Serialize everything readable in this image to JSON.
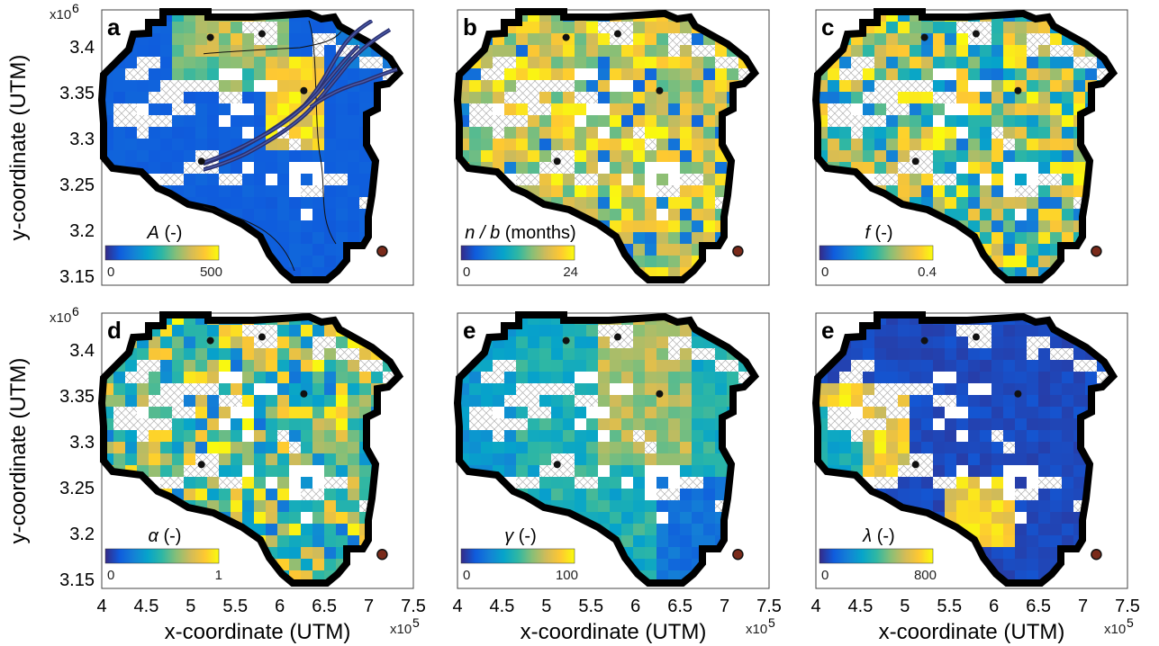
{
  "chart_data": {
    "type": "heatmap",
    "description_free": true,
    "xlabel": "x-coordinate (UTM)",
    "ylabel": "y-coordinate (UTM)",
    "x_scale_label": "x10",
    "x_scale_exp": "5",
    "y_scale_label": "x10",
    "y_scale_exp": "6",
    "xlim": [
      400000,
      750000
    ],
    "ylim": [
      3140000,
      3440000
    ],
    "x_ticks": [
      "4",
      "4.5",
      "5",
      "5.5",
      "6",
      "6.5",
      "7",
      "7.5"
    ],
    "y_ticks": [
      "3.4",
      "3.35",
      "3.3",
      "3.25",
      "3.2",
      "3.15"
    ],
    "x_tick_values": [
      400000,
      450000,
      500000,
      550000,
      600000,
      650000,
      700000,
      750000
    ],
    "y_tick_values": [
      3400000,
      3350000,
      3300000,
      3250000,
      3200000,
      3150000
    ],
    "colormap": [
      "#352a87",
      "#0f5cdd",
      "#1481d6",
      "#06a4ca",
      "#2eb7a4",
      "#87bf77",
      "#d1bb59",
      "#fec832",
      "#f9fb0e"
    ],
    "panels": [
      {
        "letter": "a",
        "var_label": "A (-)",
        "var_sym": "A",
        "var_rest": " (-)",
        "cmin": "0",
        "cmax": "500",
        "vmax": 500,
        "pattern": "A"
      },
      {
        "letter": "b",
        "var_label": "n / b (months)",
        "var_sym": "n / b",
        "var_rest": " (months)",
        "cmin": "0",
        "cmax": "24",
        "vmax": 24,
        "pattern": "noisyHigh"
      },
      {
        "letter": "c",
        "var_label": "f (-)",
        "var_sym": "f",
        "var_rest": " (-)",
        "cmin": "0",
        "cmax": "0.4",
        "vmax": 0.4,
        "pattern": "noisyMid"
      },
      {
        "letter": "d",
        "var_label": "α (-)",
        "var_sym": "α",
        "var_rest": " (-)",
        "cmin": "0",
        "cmax": "1",
        "vmax": 1,
        "pattern": "noisyMid"
      },
      {
        "letter": "e",
        "var_label": "γ (-)",
        "var_sym": "γ",
        "var_rest": " (-)",
        "cmin": "0",
        "cmax": "100",
        "vmax": 100,
        "pattern": "gamma"
      },
      {
        "letter": "e",
        "var_label": "λ (-)",
        "var_sym": "λ",
        "var_rest": " (-)",
        "cmin": "0",
        "cmax": "800",
        "vmax": 800,
        "pattern": "lambda"
      }
    ],
    "stations": [
      {
        "x": 522000,
        "y": 3410000,
        "outlet": false
      },
      {
        "x": 580000,
        "y": 3414000,
        "outlet": false
      },
      {
        "x": 627000,
        "y": 3352000,
        "outlet": false
      },
      {
        "x": 512000,
        "y": 3275000,
        "outlet": false
      },
      {
        "x": 715000,
        "y": 3177000,
        "outlet": true
      }
    ]
  }
}
